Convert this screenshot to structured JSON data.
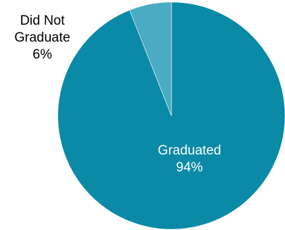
{
  "chart_data": {
    "type": "pie",
    "slices": [
      {
        "label_lines": [
          "Graduated"
        ],
        "value": 94,
        "value_label": "94%",
        "color": "#0a8aa6",
        "label_position": "inside"
      },
      {
        "label_lines": [
          "Did Not",
          "Graduate"
        ],
        "value": 6,
        "value_label": "6%",
        "color": "#4aabc2",
        "label_position": "outside-left"
      }
    ],
    "start_angle": "12 o'clock",
    "direction": "clockwise",
    "legend": "none"
  }
}
